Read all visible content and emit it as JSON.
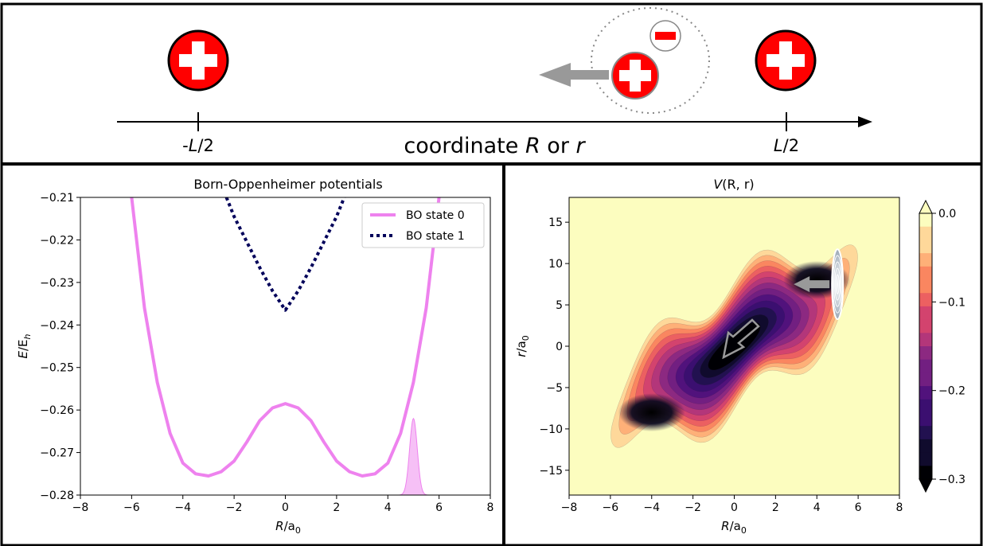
{
  "top_panel": {
    "axis_caption_prefix": "coordinate ",
    "axis_caption_R": "R",
    "axis_caption_mid": " or ",
    "axis_caption_r": "r",
    "left_tick_prefix": "-",
    "left_tick_italic": "L",
    "left_tick_suffix": "/2",
    "right_tick_italic": "L",
    "right_tick_suffix": "/2",
    "colors": {
      "charge": "#ff0000",
      "arrow": "#999999",
      "axis": "#000000"
    }
  },
  "chart_data": [
    {
      "type": "line",
      "title": "Born-Oppenheimer potentials",
      "xlabel_main": "R",
      "xlabel_sub": "0",
      "xlabel_pre": "/a",
      "ylabel_main": "E",
      "ylabel_sub": "h",
      "ylabel_pre": "/E",
      "xlim": [
        -8,
        8
      ],
      "ylim": [
        -0.28,
        -0.21
      ],
      "xticks": [
        -8,
        -6,
        -4,
        -2,
        0,
        2,
        4,
        6,
        8
      ],
      "yticks": [
        -0.28,
        -0.27,
        -0.26,
        -0.25,
        -0.24,
        -0.23,
        -0.22,
        -0.21
      ],
      "xtick_labels": [
        "−8",
        "−6",
        "−4",
        "−2",
        "0",
        "2",
        "4",
        "6",
        "8"
      ],
      "ytick_labels": [
        "−0.28",
        "−0.27",
        "−0.26",
        "−0.25",
        "−0.24",
        "−0.23",
        "−0.22",
        "−0.21"
      ],
      "legend_position": "top-right",
      "series": [
        {
          "name": "BO state 0",
          "color": "#ee82ee",
          "style": "solid",
          "x": [
            -6.0,
            -5.5,
            -5.0,
            -4.5,
            -4.0,
            -3.5,
            -3.0,
            -2.5,
            -2.0,
            -1.5,
            -1.0,
            -0.5,
            0.0,
            0.5,
            1.0,
            1.5,
            2.0,
            2.5,
            3.0,
            3.5,
            4.0,
            4.5,
            5.0,
            5.5,
            6.0
          ],
          "y": [
            -0.21,
            -0.236,
            -0.2535,
            -0.2655,
            -0.2725,
            -0.275,
            -0.2755,
            -0.2745,
            -0.272,
            -0.2675,
            -0.2625,
            -0.2595,
            -0.2585,
            -0.2595,
            -0.2625,
            -0.2675,
            -0.272,
            -0.2745,
            -0.2755,
            -0.275,
            -0.2725,
            -0.2655,
            -0.2535,
            -0.236,
            -0.21
          ]
        },
        {
          "name": "BO state 1",
          "color": "#00005a",
          "style": "dotted",
          "x": [
            -2.3,
            -2.0,
            -1.5,
            -1.0,
            -0.5,
            0.0,
            0.5,
            1.0,
            1.5,
            2.0,
            2.3
          ],
          "y": [
            -0.21,
            -0.2145,
            -0.2205,
            -0.2265,
            -0.232,
            -0.2365,
            -0.232,
            -0.2265,
            -0.2205,
            -0.2145,
            -0.21
          ]
        }
      ],
      "wavepacket": {
        "center": 5.0,
        "width": 0.15,
        "peak": -0.262,
        "base": -0.28,
        "color": "#ee82ee"
      }
    },
    {
      "type": "heatmap",
      "title_main": "V",
      "title_args": "(R, r)",
      "xlabel_main": "R",
      "xlabel_pre": "/a",
      "xlabel_sub": "0",
      "ylabel_main": "r",
      "ylabel_pre": "/a",
      "ylabel_sub": "0",
      "xlim": [
        -8,
        8
      ],
      "ylim": [
        -18,
        18
      ],
      "xticks": [
        -8,
        -6,
        -4,
        -2,
        0,
        2,
        4,
        6,
        8
      ],
      "yticks": [
        -15,
        -10,
        -5,
        0,
        5,
        10,
        15
      ],
      "xtick_labels": [
        "−8",
        "−6",
        "−4",
        "−2",
        "0",
        "2",
        "4",
        "6",
        "8"
      ],
      "ytick_labels": [
        "−15",
        "−10",
        "−5",
        "0",
        "5",
        "10",
        "15"
      ],
      "colorbar": {
        "min": -0.3,
        "max": 0.0,
        "ticks": [
          0.0,
          -0.1,
          -0.2,
          -0.3
        ],
        "tick_labels": [
          "0.0",
          "−0.1",
          "−0.2",
          "−0.3"
        ],
        "colormap": "magma"
      },
      "minima": [
        [
          -4.0,
          -8.0
        ],
        [
          4.0,
          8.0
        ]
      ],
      "wavepacket_center": [
        5.0,
        7.5
      ]
    }
  ]
}
